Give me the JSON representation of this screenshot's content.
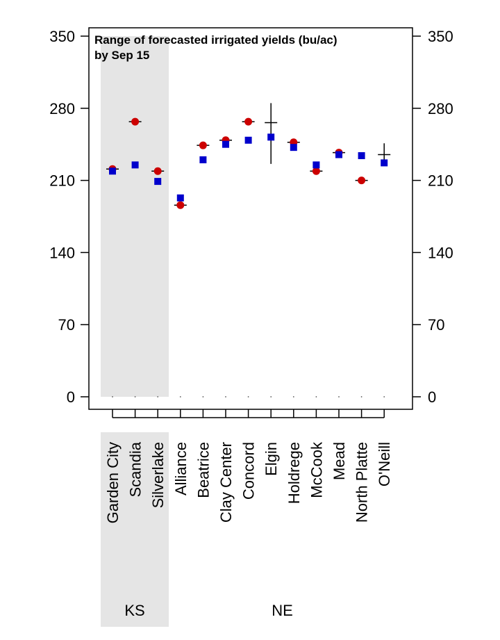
{
  "chart_data": {
    "type": "scatter",
    "title_lines": [
      "Range of forecasted irrigated yields (bu/ac)",
      "by Sep 15"
    ],
    "xlabel": "",
    "ylabel": "",
    "ylim": [
      0,
      350
    ],
    "yticks": [
      "0",
      "70",
      "140",
      "210",
      "280",
      "350"
    ],
    "categories": [
      "Garden City",
      "Scandia",
      "Silverlake",
      "Alliance",
      "Beatrice",
      "Clay Center",
      "Concord",
      "Elgin",
      "Holdrege",
      "McCook",
      "Mead",
      "North Platte",
      "O'Neill"
    ],
    "groups": [
      {
        "label": "KS",
        "start": 0,
        "end": 2,
        "shaded": true
      },
      {
        "label": "NE",
        "start": 3,
        "end": 12,
        "shaded": false
      }
    ],
    "series": [
      {
        "marker": "circle",
        "color": "#cc0000",
        "values": [
          221,
          267,
          219,
          186,
          244,
          249,
          267,
          null,
          247,
          219,
          237,
          210,
          null
        ]
      },
      {
        "marker": "square",
        "color": "#0000cc",
        "values": [
          219,
          225,
          209,
          193,
          230,
          245,
          249,
          252,
          242,
          225,
          235,
          234,
          227
        ]
      }
    ],
    "ranges": [
      {
        "median": 221,
        "low": 221,
        "high": 221
      },
      {
        "median": 267,
        "low": 267,
        "high": 267
      },
      {
        "median": 219,
        "low": 219,
        "high": 219
      },
      {
        "median": 186,
        "low": 186,
        "high": 186
      },
      {
        "median": 244,
        "low": 244,
        "high": 244
      },
      {
        "median": 249,
        "low": 249,
        "high": 249
      },
      {
        "median": 267,
        "low": 267,
        "high": 267
      },
      {
        "median": 266,
        "low": 226,
        "high": 285
      },
      {
        "median": 247,
        "low": 247,
        "high": 247
      },
      {
        "median": 219,
        "low": 219,
        "high": 219
      },
      {
        "median": 237,
        "low": 237,
        "high": 237
      },
      {
        "median": 210,
        "low": 210,
        "high": 210
      },
      {
        "median": 235,
        "low": 228,
        "high": 246
      }
    ]
  }
}
